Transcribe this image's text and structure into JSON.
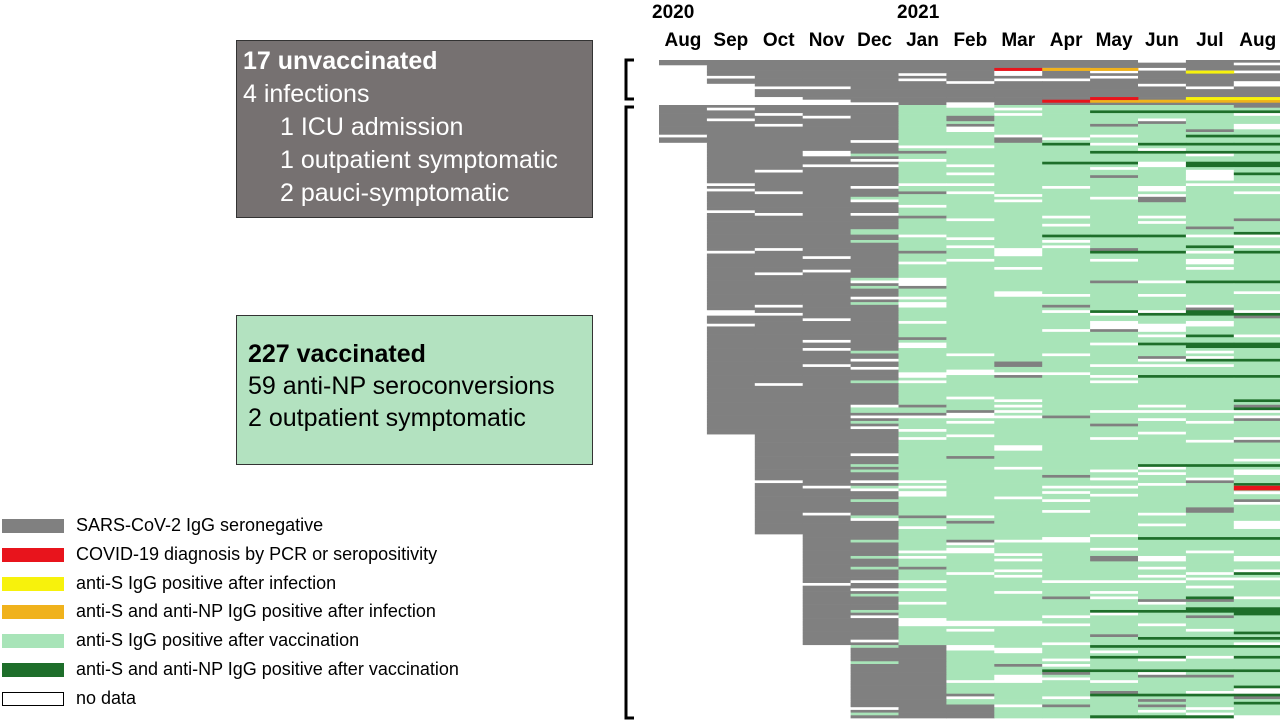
{
  "header": {
    "year_start": "2020",
    "year_mid": "2021"
  },
  "groups": {
    "unvaccinated": {
      "title": "17 unvaccinated",
      "line1": "4 infections",
      "line2": "1 ICU admission",
      "line3": "1 outpatient symptomatic",
      "line4": "2 pauci-symptomatic"
    },
    "vaccinated": {
      "title": "227 vaccinated",
      "line1": "59 anti-NP seroconversions",
      "line2": "2 outpatient symptomatic"
    }
  },
  "legend": [
    {
      "label": "SARS-CoV-2 IgG seronegative",
      "color": "#808080"
    },
    {
      "label": "COVID-19 diagnosis by PCR or seropositivity",
      "color": "#e8141c"
    },
    {
      "label": "anti-S IgG positive after infection",
      "color": "#f7f20c"
    },
    {
      "label": "anti-S and anti-NP IgG positive after infection",
      "color": "#f0b21c"
    },
    {
      "label": "anti-S IgG positive after vaccination",
      "color": "#a8e4b8"
    },
    {
      "label": "anti-S and anti-NP IgG positive after vaccination",
      "color": "#1e6e2a"
    },
    {
      "label": "no data",
      "color": "#ffffff"
    }
  ],
  "chart_data": {
    "type": "heatmap",
    "columns": [
      "Aug",
      "Sep",
      "Oct",
      "Nov",
      "Dec",
      "Jan",
      "Feb",
      "Mar",
      "Apr",
      "May",
      "Jun",
      "Jul",
      "Aug"
    ],
    "column_years": [
      "2020",
      "2020",
      "2020",
      "2020",
      "2020",
      "2021",
      "2021",
      "2021",
      "2021",
      "2021",
      "2021",
      "2021",
      "2021"
    ],
    "rows": [
      {
        "group": "unvaccinated",
        "count": 17
      },
      {
        "group": "vaccinated",
        "count": 227
      }
    ],
    "legend_placement": "bottom-left",
    "grid": false
  }
}
